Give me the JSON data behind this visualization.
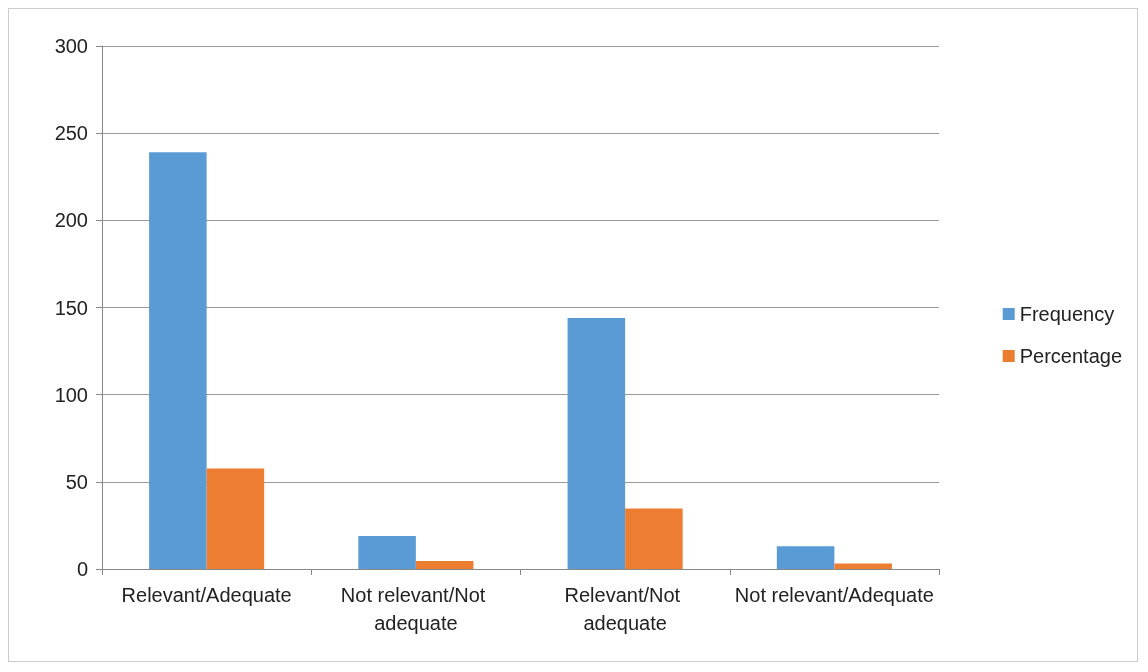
{
  "chart_data": {
    "type": "bar",
    "categories": [
      "Relevant/Adequate",
      "Not relevant/Not adequate",
      "Relevant/Not adequate",
      "Not relevant/Adequate"
    ],
    "series": [
      {
        "name": "Frequency",
        "color": "#5b9bd5",
        "values": [
          239,
          19,
          144,
          13
        ]
      },
      {
        "name": "Percentage",
        "color": "#ed7d31",
        "values": [
          57.6,
          4.6,
          34.7,
          3.1
        ]
      }
    ],
    "ylim": [
      0,
      300
    ],
    "yticks": [
      0,
      50,
      100,
      150,
      200,
      250,
      300
    ],
    "grid": "y",
    "legend": "right"
  }
}
